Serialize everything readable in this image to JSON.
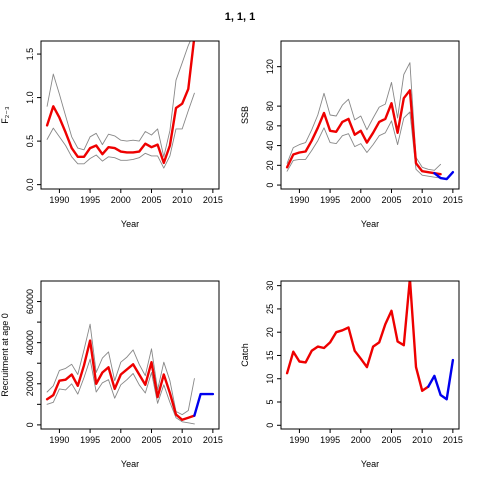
{
  "title": "1, 1, 1",
  "colors": {
    "estimate": "#ee0000",
    "forecast": "#0000ee",
    "band": "#888888"
  },
  "chart_data": [
    {
      "type": "line",
      "xlabel": "Year",
      "ylabel": "F₂₋₃",
      "xlim": [
        1987,
        2016
      ],
      "ylim": [
        -0.05,
        1.65
      ],
      "xticks": [
        1990,
        1995,
        2000,
        2005,
        2010,
        2015
      ],
      "yticks": [
        0.0,
        0.5,
        1.0,
        1.5
      ],
      "ytick_labels": [
        "0.0",
        "0.5",
        "1.0",
        "1.5"
      ],
      "series": [
        {
          "role": "estimate",
          "x": [
            1988,
            1989,
            1990,
            1991,
            1992,
            1993,
            1994,
            1995,
            1996,
            1997,
            1998,
            1999,
            2000,
            2001,
            2002,
            2003,
            2004,
            2005,
            2006,
            2007,
            2008,
            2009,
            2010,
            2011,
            2012
          ],
          "values": [
            0.68,
            0.9,
            0.77,
            0.6,
            0.42,
            0.32,
            0.32,
            0.42,
            0.45,
            0.35,
            0.43,
            0.42,
            0.38,
            0.37,
            0.37,
            0.38,
            0.47,
            0.43,
            0.46,
            0.25,
            0.45,
            0.88,
            0.93,
            1.1,
            1.7
          ]
        },
        {
          "role": "upper",
          "x": [
            1988,
            1989,
            1990,
            1991,
            1992,
            1993,
            1994,
            1995,
            1996,
            1997,
            1998,
            1999,
            2000,
            2001,
            2002,
            2003,
            2004,
            2005,
            2006,
            2007,
            2008,
            2009,
            2010,
            2011,
            2012
          ],
          "values": [
            0.9,
            1.27,
            1.04,
            0.79,
            0.55,
            0.42,
            0.4,
            0.55,
            0.59,
            0.46,
            0.58,
            0.56,
            0.51,
            0.5,
            0.51,
            0.5,
            0.61,
            0.57,
            0.64,
            0.32,
            0.62,
            1.2,
            1.4,
            1.6,
            1.75
          ]
        },
        {
          "role": "lower",
          "x": [
            1988,
            1989,
            1990,
            1991,
            1992,
            1993,
            1994,
            1995,
            1996,
            1997,
            1998,
            1999,
            2000,
            2001,
            2002,
            2003,
            2004,
            2005,
            2006,
            2007,
            2008,
            2009,
            2010,
            2011,
            2012
          ],
          "values": [
            0.52,
            0.65,
            0.55,
            0.45,
            0.32,
            0.24,
            0.24,
            0.3,
            0.34,
            0.27,
            0.32,
            0.31,
            0.28,
            0.28,
            0.29,
            0.31,
            0.36,
            0.33,
            0.33,
            0.19,
            0.33,
            0.64,
            0.64,
            0.85,
            1.05
          ]
        }
      ]
    },
    {
      "type": "line",
      "xlabel": "Year",
      "ylabel": "SSB",
      "xlim": [
        1987,
        2016
      ],
      "ylim": [
        -4,
        146
      ],
      "xticks": [
        1990,
        1995,
        2000,
        2005,
        2010,
        2015
      ],
      "yticks": [
        0,
        20,
        40,
        60,
        80,
        120
      ],
      "ytick_labels": [
        "0",
        "20",
        "40",
        "60",
        "80",
        "120"
      ],
      "series": [
        {
          "role": "estimate",
          "x": [
            1988,
            1989,
            1990,
            1991,
            1992,
            1993,
            1994,
            1995,
            1996,
            1997,
            1998,
            1999,
            2000,
            2001,
            2002,
            2003,
            2004,
            2005,
            2006,
            2007,
            2008,
            2009,
            2010,
            2011,
            2012,
            2013
          ],
          "values": [
            18,
            31,
            33,
            34,
            45,
            58,
            73,
            55,
            54,
            64,
            67,
            51,
            55,
            43,
            53,
            64,
            67,
            83,
            53,
            88,
            96,
            22,
            14,
            13,
            12,
            11
          ]
        },
        {
          "role": "upper",
          "x": [
            1988,
            1989,
            1990,
            1991,
            1992,
            1993,
            1994,
            1995,
            1996,
            1997,
            1998,
            1999,
            2000,
            2001,
            2002,
            2003,
            2004,
            2005,
            2006,
            2007,
            2008,
            2009,
            2010,
            2011,
            2012,
            2013
          ],
          "values": [
            22,
            38,
            41,
            43,
            56,
            71,
            93,
            71,
            70,
            81,
            87,
            66,
            70,
            56,
            68,
            79,
            82,
            104,
            68,
            112,
            124,
            28,
            18,
            16,
            15,
            21
          ]
        },
        {
          "role": "lower",
          "x": [
            1988,
            1989,
            1990,
            1991,
            1992,
            1993,
            1994,
            1995,
            1996,
            1997,
            1998,
            1999,
            2000,
            2001,
            2002,
            2003,
            2004,
            2005,
            2006,
            2007,
            2008,
            2009,
            2010,
            2011,
            2012,
            2013
          ],
          "values": [
            14,
            25,
            26,
            26,
            35,
            45,
            58,
            43,
            42,
            50,
            52,
            39,
            42,
            33,
            41,
            50,
            53,
            65,
            41,
            68,
            74,
            16,
            10,
            9,
            8,
            7
          ]
        },
        {
          "role": "forecast",
          "x": [
            2012,
            2013,
            2014,
            2015
          ],
          "values": [
            12,
            7,
            6,
            13
          ]
        }
      ]
    },
    {
      "type": "line",
      "xlabel": "Year",
      "ylabel": "Recruitment at age 0",
      "xlim": [
        1987,
        2016
      ],
      "ylim": [
        -2000,
        70000
      ],
      "xticks": [
        1990,
        1995,
        2000,
        2005,
        2010,
        2015
      ],
      "yticks": [
        0,
        10000,
        20000,
        30000,
        40000,
        50000,
        60000
      ],
      "ytick_labels": [
        "0",
        "",
        "20000",
        "",
        "40000",
        "",
        "60000"
      ],
      "series": [
        {
          "role": "estimate",
          "x": [
            1988,
            1989,
            1990,
            1991,
            1992,
            1993,
            1994,
            1995,
            1996,
            1997,
            1998,
            1999,
            2000,
            2001,
            2002,
            2003,
            2004,
            2005,
            2006,
            2007,
            2008,
            2009,
            2010,
            2011,
            2012
          ],
          "values": [
            12500,
            14500,
            21500,
            22000,
            24500,
            19000,
            29000,
            41000,
            20000,
            25500,
            28000,
            17500,
            24500,
            27000,
            29500,
            24500,
            19500,
            30500,
            13500,
            24500,
            15500,
            5000,
            2500,
            3500,
            4500
          ]
        },
        {
          "role": "upper",
          "x": [
            1988,
            1989,
            1990,
            1991,
            1992,
            1993,
            1994,
            1995,
            1996,
            1997,
            1998,
            1999,
            2000,
            2001,
            2002,
            2003,
            2004,
            2005,
            2006,
            2007,
            2008,
            2009,
            2010,
            2011,
            2012
          ],
          "values": [
            16000,
            19000,
            26500,
            27500,
            29500,
            24500,
            36500,
            49000,
            25500,
            32500,
            35500,
            21500,
            30500,
            33000,
            36500,
            29500,
            24000,
            37000,
            17000,
            30500,
            21500,
            6500,
            5000,
            7000,
            22500
          ]
        },
        {
          "role": "lower",
          "x": [
            1988,
            1989,
            1990,
            1991,
            1992,
            1993,
            1994,
            1995,
            1996,
            1997,
            1998,
            1999,
            2000,
            2001,
            2002,
            2003,
            2004,
            2005,
            2006,
            2007,
            2008,
            2009,
            2010,
            2011,
            2012
          ],
          "values": [
            10000,
            11000,
            17500,
            17000,
            20000,
            15000,
            23000,
            32000,
            16000,
            20500,
            22000,
            13000,
            19500,
            22000,
            25000,
            19500,
            15500,
            25500,
            10500,
            19500,
            11000,
            3500,
            1500,
            1000,
            500
          ]
        },
        {
          "role": "forecast",
          "x": [
            2012,
            2013,
            2014,
            2015
          ],
          "values": [
            4500,
            15000,
            15000,
            15000
          ]
        }
      ]
    },
    {
      "type": "line",
      "xlabel": "Year",
      "ylabel": "Catch",
      "xlim": [
        1987,
        2016
      ],
      "ylim": [
        -0.8,
        31
      ],
      "xticks": [
        1990,
        1995,
        2000,
        2005,
        2010,
        2015
      ],
      "yticks": [
        0,
        5,
        10,
        15,
        20,
        25,
        30
      ],
      "ytick_labels": [
        "0",
        "5",
        "10",
        "15",
        "20",
        "25",
        "30"
      ],
      "series": [
        {
          "role": "estimate",
          "x": [
            1988,
            1989,
            1990,
            1991,
            1992,
            1993,
            1994,
            1995,
            1996,
            1997,
            1998,
            1999,
            2000,
            2001,
            2002,
            2003,
            2004,
            2005,
            2006,
            2007,
            2008,
            2009,
            2010,
            2011
          ],
          "values": [
            11.2,
            15.8,
            13.7,
            13.5,
            16.0,
            16.9,
            16.6,
            17.8,
            20.0,
            20.4,
            21.0,
            16.0,
            14.3,
            12.5,
            16.9,
            17.8,
            21.7,
            24.6,
            18.0,
            17.2,
            31.5,
            12.5,
            7.4,
            8.3
          ]
        },
        {
          "role": "forecast",
          "x": [
            2011,
            2012,
            2013,
            2014,
            2015
          ],
          "values": [
            8.3,
            10.6,
            6.5,
            5.6,
            14.0
          ]
        }
      ]
    }
  ]
}
